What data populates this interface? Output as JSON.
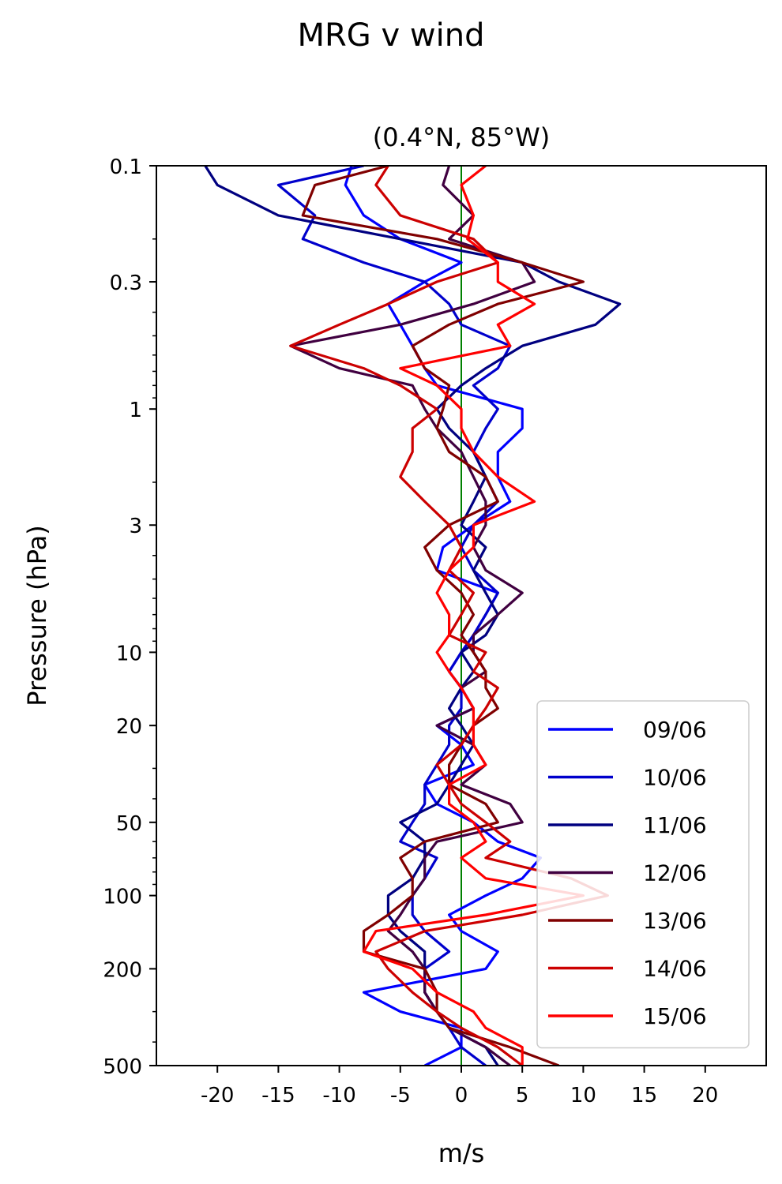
{
  "figure_title": "MRG v wind",
  "chart_data": {
    "type": "line",
    "title": "(0.4°N, 85°W)",
    "xlabel": "m/s",
    "ylabel": "Pressure (hPa)",
    "xlim": [
      -25,
      25
    ],
    "ylim": [
      500,
      0.1
    ],
    "y_scale": "log",
    "y_inverted": true,
    "x_ticks": [
      -20,
      -15,
      -10,
      -5,
      0,
      5,
      10,
      15,
      20
    ],
    "x_tick_labels": [
      "-20",
      "-15",
      "-10",
      "-5",
      "0",
      "5",
      "10",
      "15",
      "20"
    ],
    "y_ticks": [
      0.1,
      0.3,
      1,
      3,
      10,
      20,
      50,
      100,
      200,
      500
    ],
    "y_tick_labels": [
      "0.1",
      "0.3",
      "1",
      "3",
      "10",
      "20",
      "50",
      "100",
      "200",
      "500"
    ],
    "zero_line_color": "#008000",
    "legend_position": "lower right",
    "grid": false,
    "pressure_levels": [
      0.1,
      0.12,
      0.16,
      0.2,
      0.25,
      0.3,
      0.37,
      0.45,
      0.55,
      0.68,
      0.8,
      1.0,
      1.2,
      1.5,
      1.9,
      2.4,
      3.0,
      3.7,
      4.6,
      5.7,
      7.0,
      8.5,
      10,
      12,
      14,
      17,
      20,
      24,
      29,
      35,
      42,
      50,
      60,
      70,
      85,
      100,
      120,
      140,
      170,
      200,
      250,
      300,
      350,
      420,
      500
    ],
    "series": [
      {
        "name": "09/06",
        "color": "#0000ff",
        "values": [
          -9,
          -9.5,
          -8,
          -5,
          0,
          -3,
          -6,
          -5,
          -4,
          -3,
          -2,
          5,
          5,
          3,
          3,
          4,
          1,
          -1.5,
          -2,
          3,
          2,
          1,
          0,
          -1,
          0,
          1,
          -2,
          0,
          1,
          -3,
          -2,
          1,
          3,
          6.5,
          5,
          2,
          -1,
          0,
          3,
          2,
          -8,
          -5,
          0,
          0,
          -3
        ]
      },
      {
        "name": "10/06",
        "color": "#0000cc",
        "values": [
          -8,
          -15,
          -12,
          -13,
          -8,
          -3,
          -1,
          0,
          4,
          3,
          1,
          3,
          2,
          1,
          2,
          3,
          1,
          0,
          1,
          3,
          2,
          1,
          0,
          -1,
          0,
          0,
          -1,
          -1,
          -2,
          -3,
          -3,
          -4,
          -5,
          -2,
          -3,
          -4,
          -4,
          -3,
          -1,
          -3,
          -3,
          -2,
          -1,
          0,
          2
        ]
      },
      {
        "name": "11/06",
        "color": "#000080",
        "values": [
          -21,
          -20,
          -15,
          -5,
          5,
          8,
          13,
          11,
          5,
          2,
          0,
          -2,
          -1,
          1,
          2,
          1,
          0,
          2,
          1,
          2,
          3,
          2,
          0,
          1,
          0,
          -1,
          0,
          1,
          0,
          -1,
          -2,
          -5,
          -3,
          -3,
          -4,
          -6,
          -6,
          -5,
          -3,
          -3,
          -3,
          -2,
          -1,
          2,
          3
        ]
      },
      {
        "name": "12/06",
        "color": "#400040",
        "values": [
          -1,
          -1.5,
          1,
          -1,
          5,
          6,
          1,
          -5,
          -14,
          -10,
          -4,
          -3,
          -2,
          0,
          1,
          2,
          2,
          1,
          2,
          5,
          3,
          1,
          1,
          2,
          0,
          1,
          -2,
          1,
          2,
          0,
          4,
          5,
          -2,
          -3,
          -3,
          -4,
          -5,
          -6,
          -4,
          -3,
          -3,
          -2,
          -1,
          2,
          4
        ]
      },
      {
        "name": "13/06",
        "color": "#800000",
        "values": [
          -6,
          -12,
          -13,
          -2,
          5,
          10,
          3,
          -1,
          -4,
          -3,
          -1,
          -1.5,
          -2,
          -1,
          2,
          3,
          -1,
          -3,
          -2,
          0,
          1,
          0,
          1,
          2,
          2,
          3,
          1,
          0,
          -1,
          -1,
          2,
          3,
          -3,
          -5,
          -4,
          -4,
          -6,
          -8,
          -8,
          -3,
          -2,
          -2,
          -1,
          4,
          8
        ]
      },
      {
        "name": "14/06",
        "color": "#cc0000",
        "values": [
          -6,
          -7,
          -5,
          1,
          3,
          -2,
          -6,
          -10,
          -14,
          -8,
          -5,
          -2,
          -4,
          -4,
          -5,
          -3,
          -1,
          0,
          -1,
          1,
          0,
          -1,
          2,
          1,
          3,
          2,
          1,
          0,
          -2,
          -1,
          0,
          2,
          4,
          2,
          9,
          12,
          5,
          -3,
          -7,
          -6,
          -4,
          -2,
          0,
          3,
          5
        ]
      },
      {
        "name": "15/06",
        "color": "#ff0000",
        "values": [
          2,
          0,
          1,
          0.5,
          3,
          3,
          6,
          3,
          4,
          -5,
          -2,
          0,
          0,
          1,
          3,
          6,
          1,
          1,
          -1,
          -2,
          -1,
          -1,
          -2,
          -1,
          0,
          1,
          1,
          1,
          2,
          -1,
          -1,
          1,
          2,
          0,
          2,
          10,
          2,
          -7,
          -8,
          -4,
          -2,
          1,
          2,
          5,
          5
        ]
      }
    ]
  }
}
